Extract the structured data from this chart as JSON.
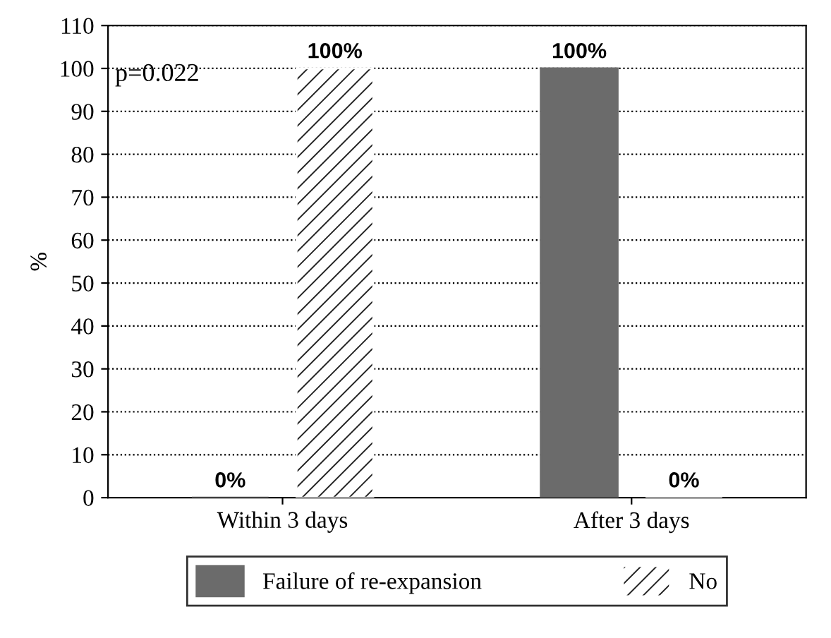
{
  "chart_data": {
    "type": "bar",
    "ylabel": "%",
    "categories": [
      "Within 3 days",
      "After 3 days"
    ],
    "series": [
      {
        "name": "Failure of re-expansion",
        "color": "#6b6b6b",
        "values": [
          0,
          100
        ],
        "value_labels": [
          "0%",
          "100%"
        ]
      },
      {
        "name": "No",
        "color": "#ffffff",
        "values": [
          100,
          0
        ],
        "value_labels": [
          "100%",
          "0%"
        ]
      }
    ],
    "annotations": [
      "p=0.022"
    ],
    "ylim": [
      0,
      110
    ],
    "yticks": [
      0,
      10,
      20,
      30,
      40,
      50,
      60,
      70,
      80,
      90,
      100,
      110
    ],
    "grid": "y",
    "legend": "bottom"
  }
}
